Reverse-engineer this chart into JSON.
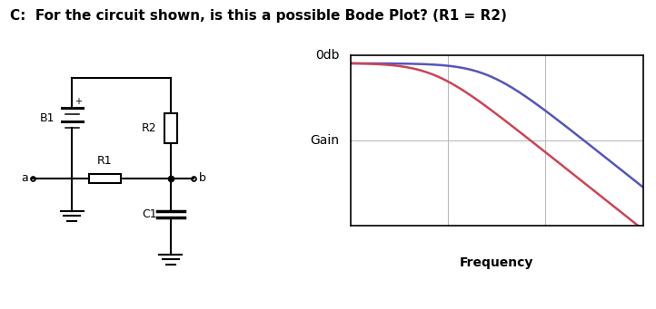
{
  "title": "C:  For the circuit shown, is this a possible Bode Plot? (R1 = R2)",
  "title_fontsize": 11,
  "title_fontweight": "bold",
  "background_color": "#ffffff",
  "bode": {
    "grid_color": "#bbbbbb",
    "line_blue_color": "#5555bb",
    "line_red_color": "#cc4455",
    "odb_label": "0db",
    "gain_label": "Gain",
    "freq_label": "Frequency",
    "freq_label_fontweight": "bold",
    "freq_label_fontsize": 10
  },
  "circuit": {
    "b1_label": "B1",
    "r1_label": "R1",
    "r2_label": "R2",
    "c1_label": "C1",
    "a_label": "a",
    "b_label": "b"
  }
}
